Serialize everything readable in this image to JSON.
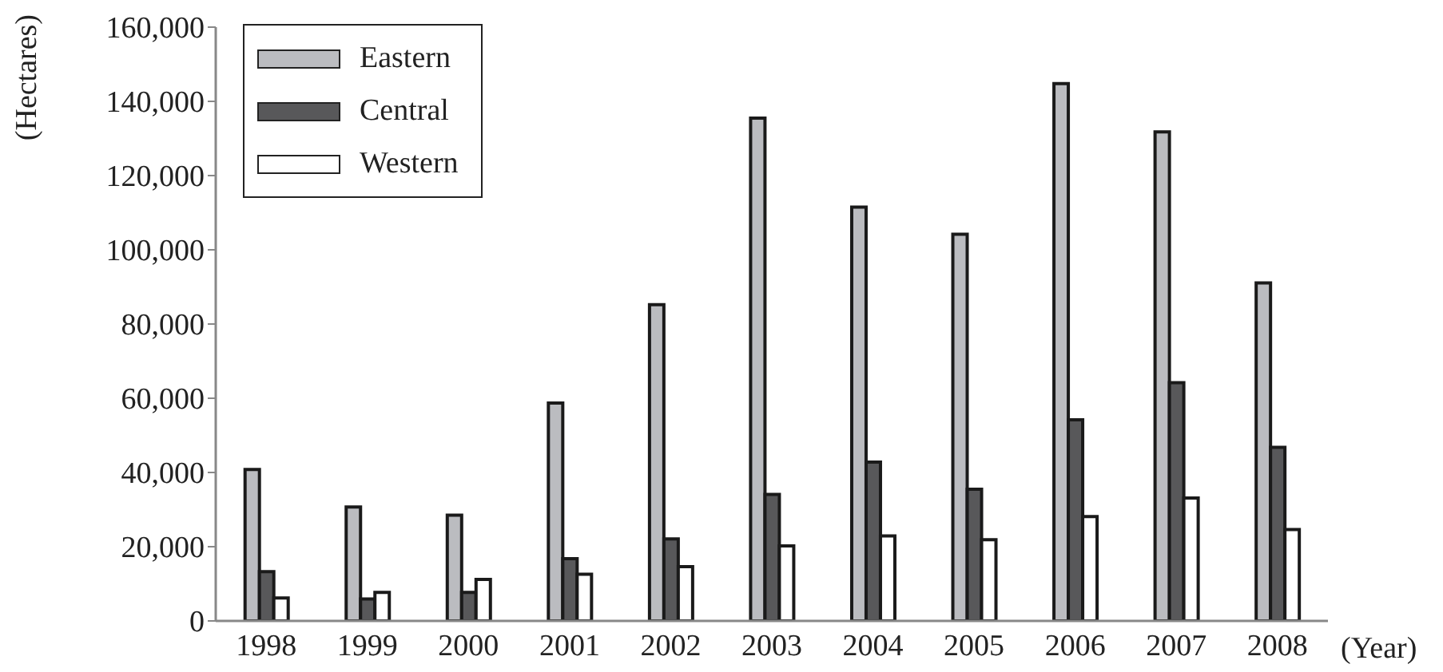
{
  "chart_data": {
    "type": "bar",
    "ylabel": "(Hectares)",
    "xlabel": "(Year)",
    "categories": [
      "1998",
      "1999",
      "2000",
      "2001",
      "2002",
      "2003",
      "2004",
      "2005",
      "2006",
      "2007",
      "2008"
    ],
    "series": [
      {
        "name": "Eastern",
        "color": "#bbbcc0",
        "values": [
          40800,
          30700,
          28500,
          58700,
          85200,
          135500,
          111500,
          104200,
          144800,
          131800,
          91100
        ]
      },
      {
        "name": "Central",
        "color": "#58585a",
        "values": [
          13300,
          5900,
          7700,
          16800,
          22100,
          34100,
          42800,
          35500,
          54200,
          64200,
          46800
        ]
      },
      {
        "name": "Western",
        "color": "#ffffff",
        "values": [
          6200,
          7700,
          11200,
          12600,
          14600,
          20200,
          22900,
          21900,
          28100,
          33100,
          24600
        ]
      }
    ],
    "ylim": [
      0,
      160000
    ],
    "yticks": [
      0,
      {
        "value": 20000,
        "label": "20,000"
      },
      {
        "value": 40000,
        "label": "40,000"
      },
      {
        "value": 60000,
        "label": "60,000"
      },
      {
        "value": 80000,
        "label": "80,000"
      },
      {
        "value": 100000,
        "label": "100,000"
      },
      {
        "value": 120000,
        "label": "120,000"
      },
      {
        "value": 140000,
        "label": "140,000"
      },
      {
        "value": 160000,
        "label": "160,000"
      }
    ],
    "legend": "top left"
  }
}
